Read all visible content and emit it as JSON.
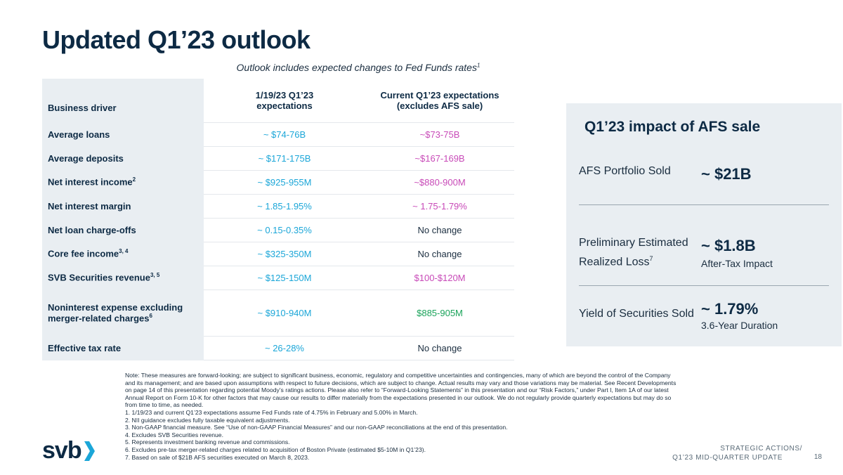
{
  "title": "Updated Q1’23 outlook",
  "subtitle": {
    "text": "Outlook includes expected changes to Fed Funds rates",
    "footnote": "1"
  },
  "table": {
    "headers": [
      "Business driver",
      "1/19/23 Q1’23 expectations",
      "Current Q1’23 expectations (excludes AFS sale)"
    ],
    "rows": [
      {
        "driver": "Average loans",
        "fn": "",
        "jan": "~ $74-76B",
        "current": "~$73-75B",
        "current_color": "magenta"
      },
      {
        "driver": "Average deposits",
        "fn": "",
        "jan": "~ $171-175B",
        "current": "~$167-169B",
        "current_color": "magenta"
      },
      {
        "driver": "Net interest income",
        "fn": "2",
        "jan": "~ $925-955M",
        "current": "~$880-900M",
        "current_color": "magenta"
      },
      {
        "driver": "Net interest margin",
        "fn": "",
        "jan": "~ 1.85-1.95%",
        "current": "~ 1.75-1.79%",
        "current_color": "magenta"
      },
      {
        "driver": "Net loan charge-offs",
        "fn": "",
        "jan": "~ 0.15-0.35%",
        "current": "No change",
        "current_color": "dark"
      },
      {
        "driver": "Core fee income",
        "fn": "3, 4",
        "jan": "~ $325-350M",
        "current": "No change",
        "current_color": "dark"
      },
      {
        "driver": "SVB Securities revenue",
        "fn": "3, 5",
        "jan": "~ $125-150M",
        "current": "$100-$120M",
        "current_color": "magenta"
      },
      {
        "driver": "Noninterest expense excluding merger-related charges",
        "fn": "6",
        "jan": "~ $910-940M",
        "current": "$885-905M",
        "current_color": "green"
      },
      {
        "driver": "Effective tax rate",
        "fn": "",
        "jan": "~ 26-28%",
        "current": "No change",
        "current_color": "dark"
      }
    ]
  },
  "impact": {
    "title": "Q1’23 impact of AFS sale",
    "items": [
      {
        "label": "AFS Portfolio Sold",
        "fn": "",
        "value": "~ $21B",
        "sub": ""
      },
      {
        "label": "Preliminary Estimated Realized Loss",
        "fn": "7",
        "value": "~ $1.8B",
        "sub": "After-Tax Impact"
      },
      {
        "label": "Yield of Securities Sold",
        "fn": "",
        "value": "~ 1.79%",
        "sub": "3.6-Year Duration"
      }
    ]
  },
  "notes": [
    "Note: These measures are forward-looking; are subject to significant business, economic, regulatory and competitive uncertainties and contingencies, many of which are beyond the control of the Company and its management; and are based upon assumptions with respect to future decisions, which are subject to change. Actual results may vary and those variations may be material. See Recent Developments on page 14 of this presentation regarding potential Moody’s ratings actions. Please also refer to “Forward-Looking Statements” in this presentation and our “Risk Factors,” under Part I, Item 1A of our latest Annual Report on Form 10-K for other factors that may cause our results to differ materially from the expectations presented in our outlook. We do not regularly provide quarterly expectations but may do so from time to time, as needed.",
    "1. 1/19/23 and current Q1’23 expectations assume Fed Funds rate of 4.75% in February and 5.00% in March.",
    "2. NII guidance excludes fully taxable equivalent adjustments.",
    "3. Non-GAAP financial measure. See “Use of non-GAAP Financial Measures” and our non-GAAP reconciliations at the end of this presentation.",
    "4. Excludes SVB Securities revenue.",
    "5. Represents investment banking revenue and commissions.",
    "6. Excludes pre-tax merger-related charges related to acquisition of Boston Private (estimated $5-10M in Q1’23).",
    "7. Based on sale of $21B AFS securities executed on March 8, 2023."
  ],
  "footer": {
    "logo": "svb",
    "line1": "STRATEGIC ACTIONS/",
    "line2": "Q1’23 MID-QUARTER UPDATE",
    "page": "18"
  },
  "colors": {
    "navy": "#0d2a44",
    "cyan": "#1ba6d8",
    "magenta": "#c84ab8",
    "green": "#1aa35a",
    "panel": "#e9eef2"
  }
}
